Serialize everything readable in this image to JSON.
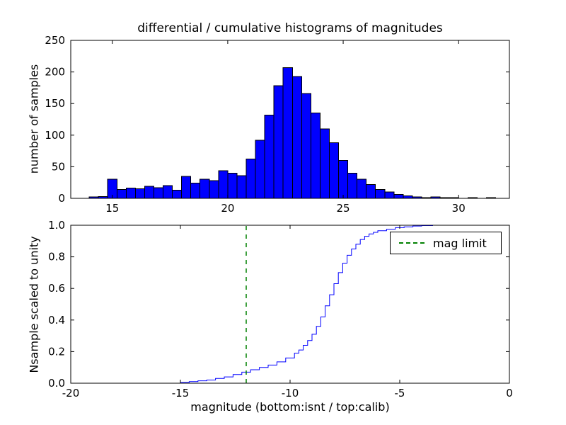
{
  "figure": {
    "title": "differential / cumulative histograms of magnitudes",
    "background": "#ffffff"
  },
  "chart_data": [
    {
      "type": "bar",
      "name": "differential-histogram-of-calibrated-magnitudes",
      "title": "differential / cumulative histograms of magnitudes",
      "xlabel": "",
      "ylabel": "number of samples",
      "bar_color": "#0000ff",
      "bar_edge_color": "#000000",
      "grid": false,
      "xlim": [
        13.2,
        32.2
      ],
      "ylim": [
        0,
        250
      ],
      "xticks": [
        15,
        20,
        25,
        30
      ],
      "xtick_labels": [
        "15",
        "20",
        "25",
        "30"
      ],
      "yticks": [
        0,
        50,
        100,
        150,
        200,
        250
      ],
      "ytick_labels": [
        "0",
        "50",
        "100",
        "150",
        "200",
        "250"
      ],
      "bin_start": 14.0,
      "bin_width": 0.4,
      "counts": [
        2,
        3,
        30,
        14,
        16,
        15,
        19,
        17,
        20,
        13,
        35,
        24,
        30,
        28,
        44,
        40,
        36,
        62,
        92,
        132,
        178,
        207,
        193,
        166,
        135,
        110,
        88,
        60,
        40,
        30,
        22,
        14,
        10,
        6,
        4,
        2,
        1,
        2,
        1,
        1,
        0,
        1,
        0,
        1
      ]
    },
    {
      "type": "line",
      "name": "cumulative-histogram-scaled-to-unity",
      "step": "post",
      "xlabel": "magnitude (bottom:isnt / top:calib)",
      "ylabel": "Nsample scaled to unity",
      "line_color": "#0000ff",
      "grid": false,
      "xlim": [
        -20,
        0
      ],
      "ylim": [
        0,
        1
      ],
      "xticks": [
        -20,
        -15,
        -10,
        -5,
        0
      ],
      "xtick_labels": [
        "-20",
        "-15",
        "-10",
        "-5",
        "0"
      ],
      "yticks": [
        0,
        0.2,
        0.4,
        0.6,
        0.8,
        1.0
      ],
      "ytick_labels": [
        "0.0",
        "0.2",
        "0.4",
        "0.6",
        "0.8",
        "1.0"
      ],
      "points": [
        [
          -20,
          0
        ],
        [
          -15.2,
          0
        ],
        [
          -15.0,
          0.005
        ],
        [
          -14.6,
          0.01
        ],
        [
          -14.2,
          0.015
        ],
        [
          -13.8,
          0.02
        ],
        [
          -13.4,
          0.03
        ],
        [
          -13.0,
          0.04
        ],
        [
          -12.6,
          0.055
        ],
        [
          -12.2,
          0.07
        ],
        [
          -11.8,
          0.085
        ],
        [
          -11.4,
          0.1
        ],
        [
          -11.0,
          0.115
        ],
        [
          -10.6,
          0.135
        ],
        [
          -10.2,
          0.16
        ],
        [
          -9.8,
          0.19
        ],
        [
          -9.6,
          0.21
        ],
        [
          -9.4,
          0.24
        ],
        [
          -9.2,
          0.27
        ],
        [
          -9.0,
          0.31
        ],
        [
          -8.8,
          0.36
        ],
        [
          -8.6,
          0.42
        ],
        [
          -8.4,
          0.49
        ],
        [
          -8.2,
          0.56
        ],
        [
          -8.0,
          0.63
        ],
        [
          -7.8,
          0.7
        ],
        [
          -7.6,
          0.76
        ],
        [
          -7.4,
          0.81
        ],
        [
          -7.2,
          0.85
        ],
        [
          -7.0,
          0.88
        ],
        [
          -6.8,
          0.91
        ],
        [
          -6.6,
          0.93
        ],
        [
          -6.4,
          0.945
        ],
        [
          -6.2,
          0.955
        ],
        [
          -6.0,
          0.965
        ],
        [
          -5.6,
          0.975
        ],
        [
          -5.2,
          0.985
        ],
        [
          -4.8,
          0.99
        ],
        [
          -4.4,
          0.995
        ],
        [
          -4.0,
          0.998
        ],
        [
          -3.5,
          1.0
        ],
        [
          0,
          1.0
        ]
      ],
      "mag_limit": {
        "x": -12,
        "color": "#008000",
        "style": "dashed",
        "label": "mag limit"
      },
      "legend_position": "upper right"
    }
  ],
  "legend": {
    "items": [
      {
        "label": "mag limit",
        "color": "#008000",
        "dash": true
      }
    ]
  }
}
